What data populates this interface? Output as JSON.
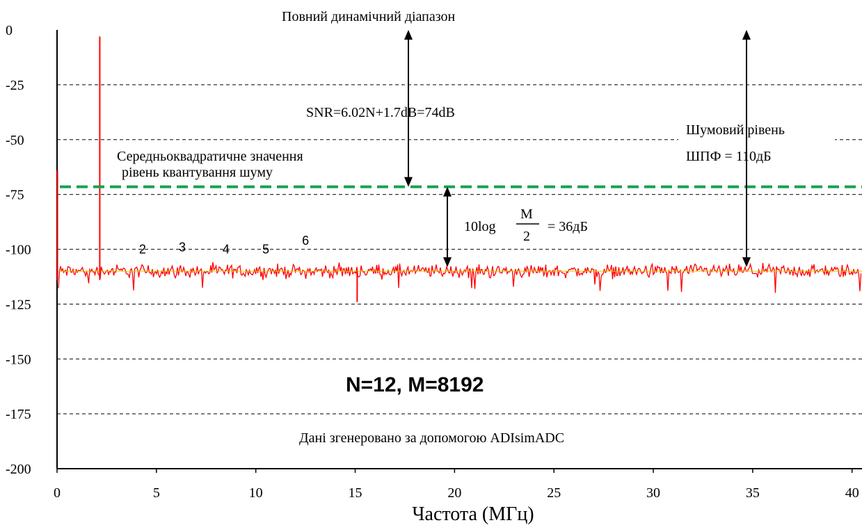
{
  "chart_data": {
    "type": "line",
    "title": "Повний динамічний діапазон",
    "xlabel": "Частота (МГц)",
    "ylabel": "",
    "xlim": [
      0,
      40.5
    ],
    "ylim": [
      -200,
      0
    ],
    "xticks": [
      0,
      5,
      10,
      15,
      20,
      25,
      30,
      35,
      40
    ],
    "yticks": [
      0,
      -25,
      -50,
      -75,
      -100,
      -125,
      -150,
      -175,
      -200
    ],
    "grid": "horizontal dashed",
    "series": [
      {
        "color": "#ff0000",
        "noise_floor_db": -110,
        "points": [
          {
            "x": 0.02,
            "y": -64
          },
          {
            "x": 2.15,
            "y": -3
          },
          {
            "x": 15.1,
            "y": -124
          }
        ]
      }
    ],
    "reference_lines": [
      {
        "y": -71.5,
        "color": "#1aa050",
        "style": "dashed"
      }
    ],
    "harmonics": [
      {
        "label": "2",
        "x": 4.3,
        "y": -100
      },
      {
        "label": "3",
        "x": 6.3,
        "y": -99
      },
      {
        "label": "4",
        "x": 8.5,
        "y": -100
      },
      {
        "label": "5",
        "x": 10.5,
        "y": -100
      },
      {
        "label": "6",
        "x": 12.5,
        "y": -96
      }
    ],
    "annotations": {
      "snr": "SNR=6.02N+1.7dB=74dB",
      "rms_line1": "Середньоквадратичне значення",
      "rms_line2": "рівень квантування шуму",
      "noise_line1": "Шумовий рівень",
      "noise_line2": "ШПФ = 110дБ",
      "gain_prefix": "10log",
      "gain_num": "M",
      "gain_den": "2",
      "gain_suffix": "= 36дБ",
      "params": "N=12, M=8192",
      "source": "Дані згенеровано за допомогою ADIsimADC"
    }
  }
}
